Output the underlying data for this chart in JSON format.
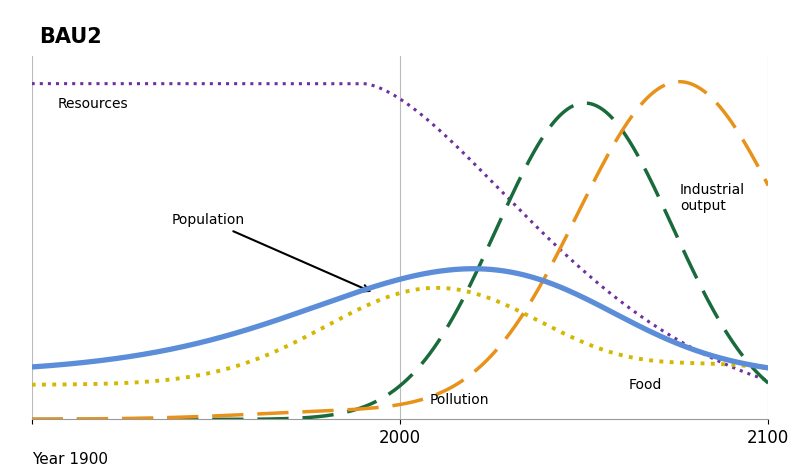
{
  "title": "BAU2",
  "background_color": "#ffffff",
  "grid_color": "#bbbbbb",
  "curves": {
    "resources": {
      "color": "#7030a0",
      "linestyle": "dotted",
      "linewidth": 2.2,
      "label": "Resources"
    },
    "population": {
      "color": "#5b8dd9",
      "linestyle": "solid",
      "linewidth": 3.8,
      "label": "Population"
    },
    "food": {
      "color": "#d4b800",
      "linestyle": "dotted",
      "linewidth": 2.8,
      "label": "Food"
    },
    "industrial_output": {
      "color": "#1a6b3c",
      "linestyle": "dashed",
      "linewidth": 2.5,
      "label": "Industrial\noutput"
    },
    "pollution": {
      "color": "#e8921a",
      "linestyle": "dashed",
      "linewidth": 2.5,
      "label": "Pollution"
    }
  }
}
